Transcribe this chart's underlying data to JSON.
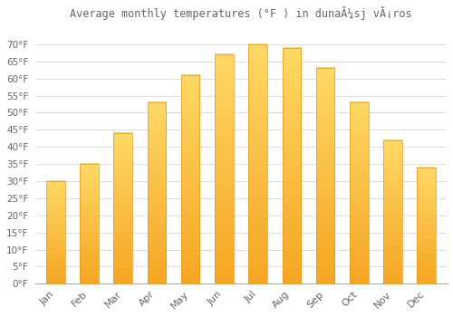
{
  "title": "Average monthly temperatures (°F ) in dunaÃ¼sj vÃ¡ros",
  "months": [
    "Jan",
    "Feb",
    "Mar",
    "Apr",
    "May",
    "Jun",
    "Jul",
    "Aug",
    "Sep",
    "Oct",
    "Nov",
    "Dec"
  ],
  "values": [
    30,
    35,
    44,
    53,
    61,
    67,
    70,
    69,
    63,
    53,
    42,
    34
  ],
  "bar_color_top": "#FFD966",
  "bar_color_bottom": "#F5A623",
  "background_color": "#FFFFFF",
  "grid_color": "#DDDDDD",
  "text_color": "#666666",
  "ylim": [
    0,
    75
  ],
  "yticks": [
    0,
    5,
    10,
    15,
    20,
    25,
    30,
    35,
    40,
    45,
    50,
    55,
    60,
    65,
    70
  ],
  "bar_width": 0.55
}
